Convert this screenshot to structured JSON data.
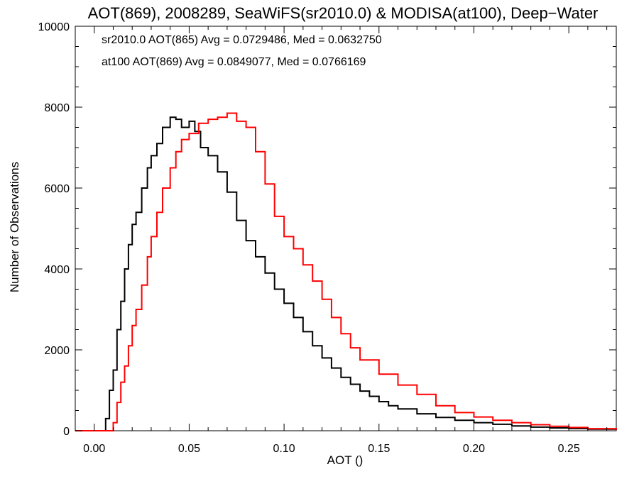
{
  "chart_data": {
    "type": "line",
    "title": "AOT(869), 2008289, SeaWiFS(sr2010.0) & MODISA(at100), Deep−Water",
    "xlabel": "AOT ()",
    "ylabel": "Number of Observations",
    "xlim": [
      -0.01,
      0.275
    ],
    "ylim": [
      0,
      10000
    ],
    "x_ticks": [
      0.0,
      0.05,
      0.1,
      0.15,
      0.2,
      0.25
    ],
    "x_tick_labels": [
      "0.00",
      "0.05",
      "0.10",
      "0.15",
      "0.20",
      "0.25"
    ],
    "y_ticks": [
      0,
      2000,
      4000,
      6000,
      8000,
      10000
    ],
    "y_tick_labels": [
      "0",
      "2000",
      "4000",
      "6000",
      "8000",
      "10000"
    ],
    "grid": false,
    "annotations": [
      {
        "text": "sr2010.0 AOT(865) Avg = 0.0729486, Med = 0.0632750",
        "color": "#000000"
      },
      {
        "text": "at100 AOT(869) Avg = 0.0849077, Med = 0.0766169",
        "color": "#ff0000"
      }
    ],
    "series": [
      {
        "color": "#000000",
        "x": [
          -0.01,
          0.0,
          0.004,
          0.006,
          0.008,
          0.01,
          0.012,
          0.014,
          0.016,
          0.018,
          0.02,
          0.022,
          0.025,
          0.028,
          0.03,
          0.033,
          0.036,
          0.04,
          0.043,
          0.046,
          0.05,
          0.053,
          0.056,
          0.06,
          0.065,
          0.07,
          0.075,
          0.08,
          0.085,
          0.09,
          0.095,
          0.1,
          0.105,
          0.11,
          0.115,
          0.12,
          0.125,
          0.13,
          0.135,
          0.14,
          0.145,
          0.15,
          0.155,
          0.16,
          0.17,
          0.18,
          0.19,
          0.2,
          0.21,
          0.22,
          0.23,
          0.24,
          0.25,
          0.26,
          0.275
        ],
        "y": [
          0,
          0,
          0,
          300,
          1000,
          1500,
          2500,
          3200,
          4000,
          4600,
          5100,
          5400,
          6000,
          6500,
          6800,
          7100,
          7500,
          7750,
          7700,
          7500,
          7650,
          7400,
          7000,
          6800,
          6400,
          5900,
          5200,
          4700,
          4300,
          3900,
          3500,
          3150,
          2800,
          2450,
          2100,
          1800,
          1550,
          1320,
          1150,
          980,
          850,
          720,
          620,
          540,
          420,
          330,
          260,
          200,
          160,
          120,
          90,
          70,
          55,
          40,
          20
        ]
      },
      {
        "color": "#ff0000",
        "x": [
          -0.01,
          0.008,
          0.01,
          0.012,
          0.014,
          0.016,
          0.018,
          0.02,
          0.022,
          0.025,
          0.028,
          0.03,
          0.033,
          0.036,
          0.04,
          0.043,
          0.046,
          0.05,
          0.055,
          0.06,
          0.065,
          0.07,
          0.075,
          0.08,
          0.085,
          0.09,
          0.095,
          0.1,
          0.105,
          0.11,
          0.115,
          0.12,
          0.125,
          0.13,
          0.135,
          0.14,
          0.15,
          0.16,
          0.17,
          0.18,
          0.19,
          0.2,
          0.21,
          0.22,
          0.23,
          0.24,
          0.25,
          0.26,
          0.275
        ],
        "y": [
          0,
          0,
          200,
          700,
          1200,
          1600,
          2100,
          2600,
          3000,
          3600,
          4300,
          4800,
          5400,
          6000,
          6500,
          6900,
          7200,
          7350,
          7600,
          7700,
          7750,
          7850,
          7650,
          7500,
          6900,
          6100,
          5300,
          4800,
          4500,
          4100,
          3700,
          3250,
          2800,
          2400,
          2050,
          1750,
          1400,
          1130,
          900,
          620,
          450,
          340,
          260,
          200,
          150,
          110,
          80,
          50,
          20
        ]
      }
    ]
  }
}
